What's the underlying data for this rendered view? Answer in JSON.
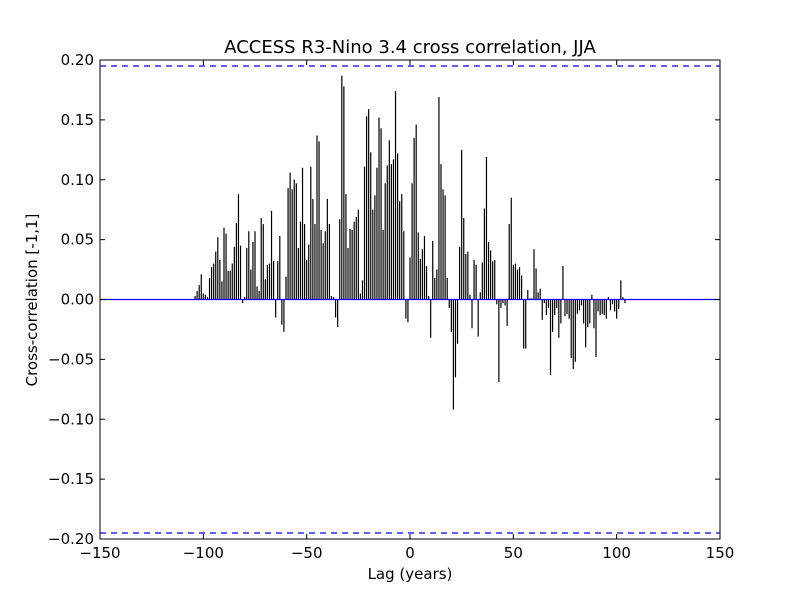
{
  "chart_data": {
    "type": "bar",
    "title": "ACCESS R3-Nino 3.4 cross correlation, JJA",
    "xlabel": "Lag (years)",
    "ylabel": "Cross-correlation [-1,1]",
    "xlim": [
      -150,
      150
    ],
    "ylim": [
      -0.2,
      0.2
    ],
    "xticks": [
      "−150",
      "−100",
      "−50",
      "0",
      "50",
      "100",
      "150"
    ],
    "yticks": [
      "0.20",
      "0.15",
      "0.10",
      "0.05",
      "0.00",
      "−0.05",
      "−0.10",
      "−0.15",
      "−0.20"
    ],
    "grid": false,
    "zero_line_color": "#0000ff",
    "significance_level": 0.195,
    "significance_line_color": "#0000ff",
    "bar_color": "#000000",
    "x": [
      -104,
      -103,
      -102,
      -101,
      -100,
      -99,
      -98,
      -97,
      -96,
      -95,
      -94,
      -93,
      -92,
      -91,
      -90,
      -89,
      -88,
      -87,
      -86,
      -85,
      -84,
      -83,
      -82,
      -81,
      -80,
      -79,
      -78,
      -77,
      -76,
      -75,
      -74,
      -73,
      -72,
      -71,
      -70,
      -69,
      -68,
      -67,
      -66,
      -65,
      -64,
      -63,
      -62,
      -61,
      -60,
      -59,
      -58,
      -57,
      -56,
      -55,
      -54,
      -53,
      -52,
      -51,
      -50,
      -49,
      -48,
      -47,
      -46,
      -45,
      -44,
      -43,
      -42,
      -41,
      -40,
      -39,
      -38,
      -37,
      -36,
      -35,
      -34,
      -33,
      -32,
      -31,
      -30,
      -29,
      -28,
      -27,
      -26,
      -25,
      -24,
      -23,
      -22,
      -21,
      -20,
      -19,
      -18,
      -17,
      -16,
      -15,
      -14,
      -13,
      -12,
      -11,
      -10,
      -9,
      -8,
      -7,
      -6,
      -5,
      -4,
      -3,
      -2,
      -1,
      0,
      1,
      2,
      3,
      4,
      5,
      6,
      7,
      8,
      9,
      10,
      11,
      12,
      13,
      14,
      15,
      16,
      17,
      18,
      19,
      20,
      21,
      22,
      23,
      24,
      25,
      26,
      27,
      28,
      29,
      30,
      31,
      32,
      33,
      34,
      35,
      36,
      37,
      38,
      39,
      40,
      41,
      42,
      43,
      44,
      45,
      46,
      47,
      48,
      49,
      50,
      51,
      52,
      53,
      54,
      55,
      56,
      57,
      58,
      59,
      60,
      61,
      62,
      63,
      64,
      65,
      66,
      67,
      68,
      69,
      70,
      71,
      72,
      73,
      74,
      75,
      76,
      77,
      78,
      79,
      80,
      81,
      82,
      83,
      84,
      85,
      86,
      87,
      88,
      89,
      90,
      91,
      92,
      93,
      94,
      95,
      96,
      97,
      98,
      99,
      100,
      101,
      102,
      103,
      104
    ],
    "values": [
      0.003,
      0.007,
      0.012,
      0.021,
      0.005,
      0.004,
      0.002,
      0.018,
      0.027,
      0.03,
      0.04,
      0.052,
      0.033,
      0.015,
      0.06,
      0.055,
      0.024,
      0.024,
      0.03,
      0.044,
      0.064,
      0.088,
      0.045,
      -0.003,
      0.002,
      0.043,
      0.057,
      0.025,
      0.048,
      0.057,
      0.011,
      0.007,
      0.068,
      0.063,
      0.017,
      0.029,
      0.03,
      0.074,
      0.032,
      -0.015,
      0.032,
      0.053,
      -0.021,
      -0.027,
      0.019,
      0.093,
      0.106,
      0.092,
      0.1,
      0.097,
      0.043,
      0.065,
      0.11,
      0.063,
      0.033,
      0.046,
      0.111,
      0.084,
      0.063,
      0.137,
      0.132,
      0.058,
      0.047,
      0.057,
      0.084,
      0.063,
      0.003,
      0.002,
      -0.015,
      -0.023,
      0.067,
      0.187,
      0.178,
      0.088,
      0.043,
      0.059,
      0.058,
      0.065,
      0.069,
      0.075,
      0.005,
      0.016,
      0.111,
      0.153,
      0.159,
      0.123,
      0.075,
      0.087,
      0.11,
      0.152,
      0.143,
      0.058,
      0.097,
      0.112,
      0.133,
      0.113,
      0.117,
      0.174,
      0.122,
      0.082,
      0.088,
      0.057,
      -0.016,
      -0.019,
      0.035,
      0.097,
      0.135,
      0.146,
      0.056,
      0.034,
      0.042,
      0.053,
      0.028,
      0.003,
      -0.032,
      0.049,
      0.018,
      0.025,
      0.169,
      0.113,
      0.092,
      0.087,
      0.018,
      -0.007,
      -0.027,
      -0.092,
      -0.065,
      -0.037,
      0.044,
      0.125,
      0.068,
      0.038,
      0.04,
      0.004,
      -0.024,
      0.033,
      0.029,
      -0.031,
      0.006,
      0.031,
      0.076,
      0.119,
      0.048,
      0.041,
      0.032,
      0.033,
      -0.004,
      -0.069,
      -0.007,
      -0.003,
      -0.005,
      -0.022,
      0.063,
      0.085,
      0.029,
      0.03,
      0.025,
      0.027,
      0.02,
      -0.041,
      -0.041,
      0.008,
      0.001,
      0.001,
      0.042,
      0.026,
      0.006,
      0.009,
      -0.017,
      -0.003,
      -0.013,
      -0.007,
      -0.063,
      -0.027,
      -0.013,
      -0.007,
      -0.032,
      -0.02,
      0.028,
      -0.014,
      -0.012,
      -0.016,
      -0.049,
      -0.058,
      -0.052,
      -0.012,
      -0.009,
      -0.005,
      -0.02,
      -0.04,
      -0.023,
      -0.02,
      0.004,
      -0.024,
      -0.048,
      -0.01,
      -0.013,
      -0.012,
      -0.013,
      -0.016,
      0.002,
      -0.009,
      -0.004,
      -0.01,
      -0.016,
      -0.008,
      0.016,
      0.002,
      -0.003
    ]
  }
}
